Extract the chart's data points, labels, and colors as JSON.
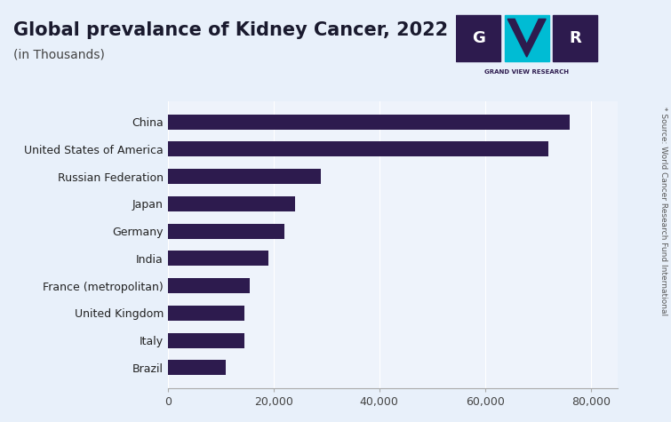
{
  "title": "Global prevalance of Kidney Cancer, 2022",
  "subtitle": "(in Thousands)",
  "source_text": "* Source: World Cancer Research Fund International",
  "categories": [
    "Brazil",
    "Italy",
    "United Kingdom",
    "France (metropolitan)",
    "India",
    "Germany",
    "Japan",
    "Russian Federation",
    "United States of America",
    "China"
  ],
  "values": [
    11000,
    14500,
    14500,
    15500,
    19000,
    22000,
    24000,
    29000,
    72000,
    76000
  ],
  "bar_color": "#2d1b4e",
  "background_color": "#e8f0fa",
  "plot_bg_color": "#eef3fb",
  "xlim": [
    0,
    85000
  ],
  "xticks": [
    0,
    20000,
    40000,
    60000,
    80000
  ],
  "xticklabels": [
    "0",
    "20,000",
    "40,000",
    "60,000",
    "80,000"
  ],
  "title_fontsize": 15,
  "subtitle_fontsize": 10,
  "tick_fontsize": 9,
  "label_fontsize": 9,
  "bar_height": 0.55,
  "logo_colors": {
    "dark": "#2d1b4e",
    "cyan": "#00bcd4"
  },
  "logo_text": "GRAND VIEW RESEARCH"
}
